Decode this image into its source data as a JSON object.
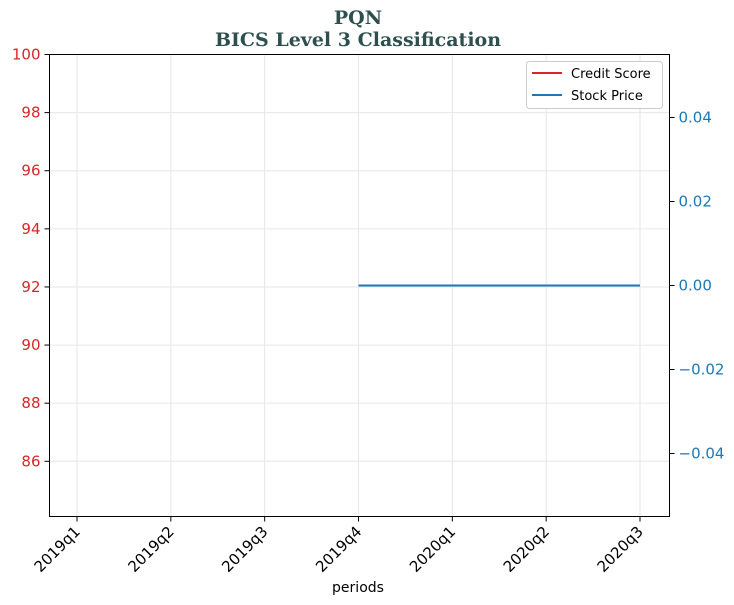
{
  "chart_data": {
    "type": "line",
    "title": "PQN",
    "subtitle": "BICS Level 3 Classification",
    "xlabel": "periods",
    "categories": [
      "2019q1",
      "2019q2",
      "2019q3",
      "2019q4",
      "2020q1",
      "2020q2",
      "2020q3"
    ],
    "left_axis": {
      "ylim": [
        84.1,
        100
      ],
      "ticks": [
        86,
        88,
        90,
        92,
        94,
        96,
        98,
        100
      ],
      "color": "#d62728"
    },
    "right_axis": {
      "ylim": [
        -0.055,
        0.055
      ],
      "ticks": [
        -0.04,
        -0.02,
        0.0,
        0.02,
        0.04
      ],
      "tick_labels": [
        "−0.04",
        "−0.02",
        "0.00",
        "0.02",
        "0.04"
      ],
      "color": "#1f77b4"
    },
    "grid": true,
    "legend_position": "top-right",
    "series": [
      {
        "name": "Credit Score",
        "axis": "left",
        "color": "#d62728",
        "values": [
          null,
          null,
          null,
          null,
          null,
          null,
          null
        ]
      },
      {
        "name": "Stock Price",
        "axis": "right",
        "color": "#1f77b4",
        "values": [
          null,
          null,
          null,
          0,
          0,
          0,
          0
        ]
      }
    ]
  }
}
